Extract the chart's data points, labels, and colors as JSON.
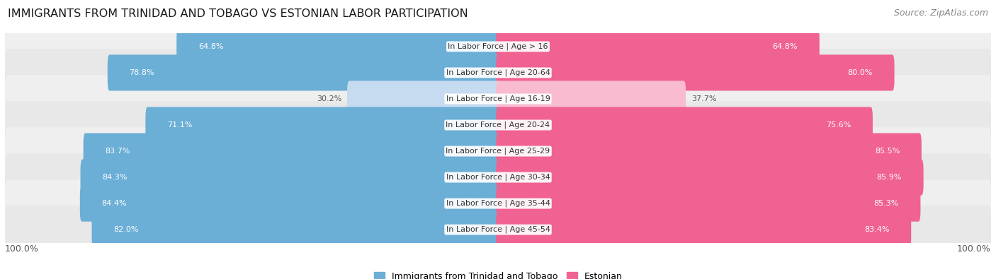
{
  "title": "IMMIGRANTS FROM TRINIDAD AND TOBAGO VS ESTONIAN LABOR PARTICIPATION",
  "source": "Source: ZipAtlas.com",
  "categories": [
    "In Labor Force | Age > 16",
    "In Labor Force | Age 20-64",
    "In Labor Force | Age 16-19",
    "In Labor Force | Age 20-24",
    "In Labor Force | Age 25-29",
    "In Labor Force | Age 30-34",
    "In Labor Force | Age 35-44",
    "In Labor Force | Age 45-54"
  ],
  "trinidad_values": [
    64.8,
    78.8,
    30.2,
    71.1,
    83.7,
    84.3,
    84.4,
    82.0
  ],
  "estonian_values": [
    64.8,
    80.0,
    37.7,
    75.6,
    85.5,
    85.9,
    85.3,
    83.4
  ],
  "trinidad_color": "#6baed6",
  "estonian_color": "#f06292",
  "trinidad_color_light": "#c6dbef",
  "estonian_color_light": "#f8bbd0",
  "row_bg_color": "#efefef",
  "row_bg_alt": "#e8e8e8",
  "max_value": 100.0,
  "legend_trinidad": "Immigrants from Trinidad and Tobago",
  "legend_estonian": "Estonian",
  "title_fontsize": 11.5,
  "source_fontsize": 9,
  "label_fontsize": 8,
  "value_fontsize": 8,
  "axis_label_fontsize": 9
}
